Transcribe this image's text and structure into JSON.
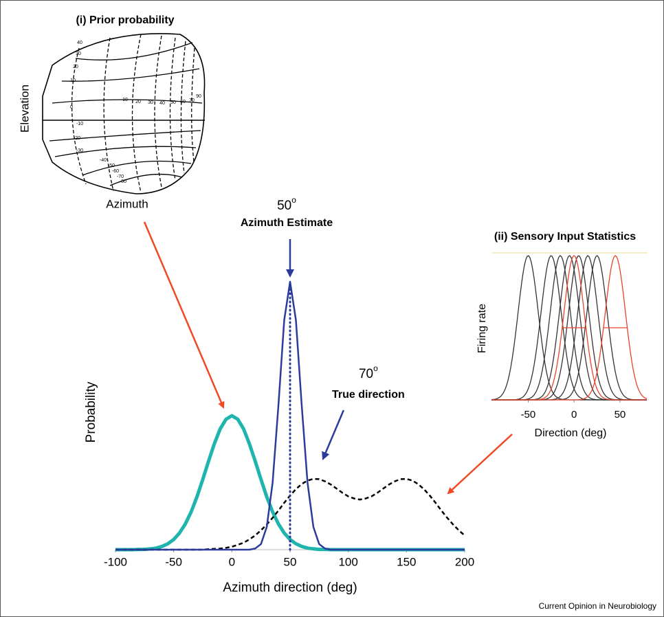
{
  "chart_data": [
    {
      "type": "line",
      "xlabel": "Azimuth direction (deg)",
      "ylabel": "Probability",
      "x": [
        -100,
        -95,
        -90,
        -85,
        -80,
        -75,
        -70,
        -65,
        -60,
        -55,
        -50,
        -45,
        -40,
        -35,
        -30,
        -25,
        -20,
        -15,
        -10,
        -5,
        0,
        5,
        10,
        15,
        20,
        25,
        30,
        35,
        40,
        45,
        50,
        55,
        60,
        65,
        70,
        75,
        80,
        85,
        90,
        95,
        100,
        105,
        110,
        115,
        120,
        125,
        130,
        135,
        140,
        145,
        150,
        155,
        160,
        165,
        170,
        175,
        180,
        185,
        190,
        195,
        200
      ],
      "series": [
        {
          "color": "#1fb5ad",
          "values": [
            0,
            0,
            0,
            0,
            0.001,
            0.001,
            0.003,
            0.006,
            0.012,
            0.022,
            0.038,
            0.062,
            0.096,
            0.141,
            0.197,
            0.262,
            0.331,
            0.396,
            0.451,
            0.487,
            0.5,
            0.487,
            0.451,
            0.396,
            0.331,
            0.262,
            0.197,
            0.141,
            0.096,
            0.062,
            0.038,
            0.022,
            0.012,
            0.006,
            0.003,
            0.001,
            0.001,
            0,
            0,
            0,
            0,
            0,
            0,
            0,
            0,
            0,
            0,
            0,
            0,
            0,
            0,
            0,
            0,
            0,
            0,
            0,
            0,
            0,
            0,
            0,
            0
          ]
        },
        {
          "color": "#000000",
          "dashed": true,
          "values": [
            0,
            0,
            0,
            0,
            0,
            0,
            0,
            0,
            0,
            0,
            0,
            0,
            0,
            0,
            0,
            0,
            0.002,
            0.003,
            0.004,
            0.007,
            0.011,
            0.018,
            0.026,
            0.038,
            0.053,
            0.072,
            0.094,
            0.119,
            0.146,
            0.175,
            0.202,
            0.226,
            0.245,
            0.258,
            0.264,
            0.263,
            0.255,
            0.243,
            0.228,
            0.212,
            0.199,
            0.191,
            0.187,
            0.191,
            0.199,
            0.212,
            0.228,
            0.243,
            0.255,
            0.263,
            0.264,
            0.258,
            0.245,
            0.226,
            0.202,
            0.175,
            0.146,
            0.119,
            0.094,
            0.072,
            0.053
          ]
        },
        {
          "color": "#2a3b9b",
          "values": [
            0,
            0,
            0,
            0,
            0,
            0,
            0,
            0,
            0,
            0,
            0,
            0,
            0,
            0,
            0,
            0,
            0,
            0,
            0,
            0,
            0,
            0,
            0,
            0,
            0.004,
            0.021,
            0.085,
            0.25,
            0.54,
            0.857,
            1,
            0.857,
            0.54,
            0.25,
            0.085,
            0.021,
            0.004,
            0,
            0,
            0,
            0,
            0,
            0,
            0,
            0,
            0,
            0,
            0,
            0,
            0,
            0,
            0,
            0,
            0,
            0,
            0,
            0,
            0,
            0,
            0,
            0
          ]
        }
      ],
      "xlim": [
        -100,
        200
      ],
      "xticks": [
        -100,
        -50,
        0,
        50,
        100,
        150,
        200
      ],
      "ylim": [
        0,
        1
      ],
      "annotations": [
        {
          "x": 50,
          "degree": "o",
          "text": "Azimuth Estimate"
        },
        {
          "x": 70,
          "degree": "o",
          "text": "True direction"
        }
      ]
    },
    {
      "type": "tuning-curves",
      "title": "(ii) Sensory Input Statistics",
      "xlabel": "Direction (deg)",
      "ylabel": "Firing rate",
      "xlim": [
        -90,
        80
      ],
      "xticks": [
        -50,
        0,
        50
      ],
      "ylim": [
        0,
        1
      ],
      "series": [
        {
          "color": "#333333",
          "centers": [
            -50,
            -25,
            -15,
            -5,
            5,
            15,
            25
          ],
          "sd": 11
        },
        {
          "color": "#e8432b",
          "centers": [
            0,
            45
          ],
          "sd": 11,
          "halfwidth_bars": true
        }
      ]
    },
    {
      "type": "contour-map",
      "title": "(i) Prior probability",
      "xlabel": "Azimuth",
      "ylabel": "Elevation",
      "elevation_labels": [
        "40",
        "30",
        "20",
        "10",
        "0",
        "-10",
        "-20",
        "-30",
        "-40",
        "-50",
        "-60",
        "-70",
        "-80"
      ],
      "azimuth_labels": [
        "10",
        "20",
        "30",
        "40",
        "50",
        "60",
        "70",
        "90"
      ]
    }
  ],
  "footer": "Current Opinion in Neurobiology"
}
